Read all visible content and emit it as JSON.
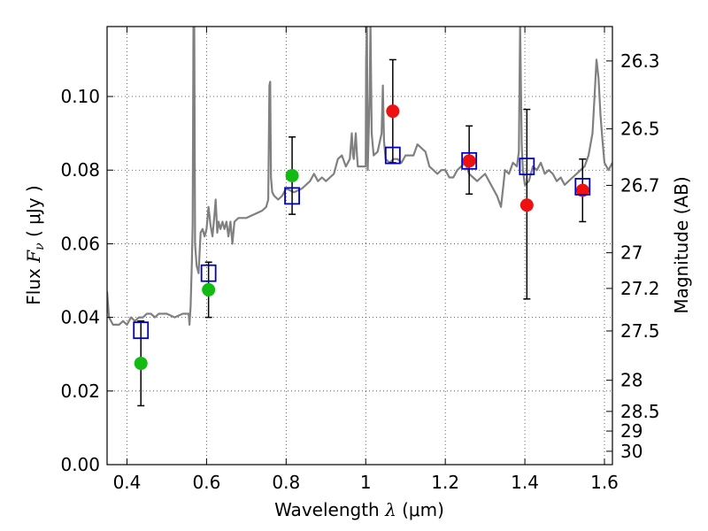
{
  "chart_data": {
    "type": "scatter",
    "title": "",
    "xlabel": {
      "prefix": "Wavelength  ",
      "symbol": "λ",
      "unit": " (μm)"
    },
    "ylabel": {
      "prefix": "Flux  ",
      "symbol": "F",
      "sub": "ν",
      "unit": "  ( μJy )"
    },
    "ylabel_right": "Magnitude (AB)",
    "xlim": [
      0.35,
      1.62
    ],
    "ylim": [
      0.0,
      0.119
    ],
    "grid": true,
    "x_ticks": [
      {
        "value": 0.4,
        "label": "0.4"
      },
      {
        "value": 0.6,
        "label": "0.6"
      },
      {
        "value": 0.8,
        "label": "0.8"
      },
      {
        "value": 1.0,
        "label": "1"
      },
      {
        "value": 1.2,
        "label": "1.2"
      },
      {
        "value": 1.4,
        "label": "1.4"
      },
      {
        "value": 1.6,
        "label": "1.6"
      }
    ],
    "y_ticks": [
      {
        "value": 0.0,
        "label": "0.00"
      },
      {
        "value": 0.02,
        "label": "0.02"
      },
      {
        "value": 0.04,
        "label": "0.04"
      },
      {
        "value": 0.06,
        "label": "0.06"
      },
      {
        "value": 0.08,
        "label": "0.08"
      },
      {
        "value": 0.1,
        "label": "0.10"
      }
    ],
    "right_ticks": [
      {
        "value": 26.3,
        "label": "26.3"
      },
      {
        "value": 26.5,
        "label": "26.5"
      },
      {
        "value": 26.7,
        "label": "26.7"
      },
      {
        "value": 27.0,
        "label": "27"
      },
      {
        "value": 27.2,
        "label": "27.2"
      },
      {
        "value": 27.5,
        "label": "27.5"
      },
      {
        "value": 28.0,
        "label": "28"
      },
      {
        "value": 28.5,
        "label": "28.5"
      },
      {
        "value": 29.0,
        "label": "29"
      },
      {
        "value": 30.0,
        "label": "30"
      }
    ],
    "series": [
      {
        "kind": "spectrum",
        "color": "#808080",
        "points": [
          [
            0.35,
            0.047
          ],
          [
            0.355,
            0.04
          ],
          [
            0.365,
            0.038
          ],
          [
            0.38,
            0.038
          ],
          [
            0.39,
            0.039
          ],
          [
            0.4,
            0.038
          ],
          [
            0.41,
            0.04
          ],
          [
            0.42,
            0.039
          ],
          [
            0.43,
            0.04
          ],
          [
            0.44,
            0.04
          ],
          [
            0.45,
            0.041
          ],
          [
            0.46,
            0.041
          ],
          [
            0.47,
            0.04
          ],
          [
            0.48,
            0.041
          ],
          [
            0.5,
            0.041
          ],
          [
            0.52,
            0.04
          ],
          [
            0.54,
            0.041
          ],
          [
            0.555,
            0.041
          ],
          [
            0.557,
            0.038
          ],
          [
            0.56,
            0.043
          ],
          [
            0.563,
            0.055
          ],
          [
            0.565,
            0.065
          ],
          [
            0.567,
            0.12
          ],
          [
            0.569,
            0.12
          ],
          [
            0.571,
            0.06
          ],
          [
            0.575,
            0.054
          ],
          [
            0.58,
            0.052
          ],
          [
            0.585,
            0.063
          ],
          [
            0.59,
            0.064
          ],
          [
            0.595,
            0.062
          ],
          [
            0.6,
            0.064
          ],
          [
            0.605,
            0.07
          ],
          [
            0.61,
            0.065
          ],
          [
            0.615,
            0.062
          ],
          [
            0.62,
            0.068
          ],
          [
            0.623,
            0.072
          ],
          [
            0.627,
            0.063
          ],
          [
            0.63,
            0.066
          ],
          [
            0.635,
            0.064
          ],
          [
            0.64,
            0.066
          ],
          [
            0.645,
            0.064
          ],
          [
            0.65,
            0.066
          ],
          [
            0.655,
            0.062
          ],
          [
            0.66,
            0.066
          ],
          [
            0.665,
            0.06
          ],
          [
            0.67,
            0.066
          ],
          [
            0.68,
            0.067
          ],
          [
            0.7,
            0.067
          ],
          [
            0.72,
            0.068
          ],
          [
            0.74,
            0.069
          ],
          [
            0.75,
            0.07
          ],
          [
            0.755,
            0.072
          ],
          [
            0.758,
            0.103
          ],
          [
            0.76,
            0.104
          ],
          [
            0.762,
            0.078
          ],
          [
            0.765,
            0.074
          ],
          [
            0.77,
            0.073
          ],
          [
            0.78,
            0.072
          ],
          [
            0.79,
            0.073
          ],
          [
            0.8,
            0.075
          ],
          [
            0.82,
            0.074
          ],
          [
            0.84,
            0.075
          ],
          [
            0.86,
            0.077
          ],
          [
            0.87,
            0.079
          ],
          [
            0.88,
            0.077
          ],
          [
            0.89,
            0.078
          ],
          [
            0.9,
            0.077
          ],
          [
            0.91,
            0.078
          ],
          [
            0.92,
            0.079
          ],
          [
            0.93,
            0.083
          ],
          [
            0.94,
            0.084
          ],
          [
            0.95,
            0.081
          ],
          [
            0.96,
            0.083
          ],
          [
            0.965,
            0.09
          ],
          [
            0.968,
            0.084
          ],
          [
            0.97,
            0.083
          ],
          [
            0.975,
            0.09
          ],
          [
            0.978,
            0.084
          ],
          [
            0.98,
            0.081
          ],
          [
            0.99,
            0.081
          ],
          [
            1.0,
            0.081
          ],
          [
            1.001,
            0.11
          ],
          [
            1.003,
            0.12
          ],
          [
            1.005,
            0.08
          ],
          [
            1.01,
            0.1
          ],
          [
            1.012,
            0.12
          ],
          [
            1.015,
            0.09
          ],
          [
            1.02,
            0.084
          ],
          [
            1.03,
            0.085
          ],
          [
            1.04,
            0.09
          ],
          [
            1.043,
            0.103
          ],
          [
            1.046,
            0.088
          ],
          [
            1.05,
            0.083
          ],
          [
            1.06,
            0.082
          ],
          [
            1.07,
            0.083
          ],
          [
            1.08,
            0.083
          ],
          [
            1.09,
            0.082
          ],
          [
            1.1,
            0.084
          ],
          [
            1.11,
            0.084
          ],
          [
            1.12,
            0.084
          ],
          [
            1.13,
            0.087
          ],
          [
            1.14,
            0.086
          ],
          [
            1.15,
            0.085
          ],
          [
            1.16,
            0.081
          ],
          [
            1.17,
            0.08
          ],
          [
            1.18,
            0.079
          ],
          [
            1.19,
            0.08
          ],
          [
            1.2,
            0.08
          ],
          [
            1.21,
            0.078
          ],
          [
            1.22,
            0.078
          ],
          [
            1.23,
            0.08
          ],
          [
            1.24,
            0.081
          ],
          [
            1.25,
            0.082
          ],
          [
            1.26,
            0.079
          ],
          [
            1.27,
            0.078
          ],
          [
            1.28,
            0.077
          ],
          [
            1.29,
            0.078
          ],
          [
            1.3,
            0.079
          ],
          [
            1.31,
            0.077
          ],
          [
            1.32,
            0.075
          ],
          [
            1.33,
            0.073
          ],
          [
            1.34,
            0.07
          ],
          [
            1.345,
            0.075
          ],
          [
            1.35,
            0.08
          ],
          [
            1.36,
            0.079
          ],
          [
            1.37,
            0.082
          ],
          [
            1.38,
            0.081
          ],
          [
            1.385,
            0.085
          ],
          [
            1.388,
            0.12
          ],
          [
            1.392,
            0.087
          ],
          [
            1.395,
            0.08
          ],
          [
            1.4,
            0.076
          ],
          [
            1.41,
            0.077
          ],
          [
            1.42,
            0.081
          ],
          [
            1.43,
            0.08
          ],
          [
            1.44,
            0.082
          ],
          [
            1.45,
            0.079
          ],
          [
            1.46,
            0.08
          ],
          [
            1.47,
            0.079
          ],
          [
            1.48,
            0.077
          ],
          [
            1.49,
            0.078
          ],
          [
            1.5,
            0.076
          ],
          [
            1.51,
            0.077
          ],
          [
            1.52,
            0.078
          ],
          [
            1.53,
            0.079
          ],
          [
            1.54,
            0.08
          ],
          [
            1.55,
            0.081
          ],
          [
            1.56,
            0.084
          ],
          [
            1.57,
            0.09
          ],
          [
            1.575,
            0.1
          ],
          [
            1.58,
            0.11
          ],
          [
            1.585,
            0.105
          ],
          [
            1.59,
            0.095
          ],
          [
            1.595,
            0.088
          ],
          [
            1.6,
            0.082
          ],
          [
            1.61,
            0.08
          ],
          [
            1.62,
            0.082
          ]
        ]
      },
      {
        "kind": "model-squares",
        "color": "#0000cc",
        "points": [
          [
            0.435,
            0.0365
          ],
          [
            0.605,
            0.052
          ],
          [
            0.815,
            0.073
          ],
          [
            1.068,
            0.084
          ],
          [
            1.26,
            0.0825
          ],
          [
            1.405,
            0.081
          ],
          [
            1.545,
            0.0755
          ]
        ]
      },
      {
        "kind": "green-points",
        "color": "#11bb11",
        "points": [
          [
            0.435,
            0.0275
          ],
          [
            0.605,
            0.0475
          ],
          [
            0.815,
            0.0785
          ]
        ]
      },
      {
        "kind": "red-points",
        "color": "#ee1111",
        "points": [
          [
            1.068,
            0.096
          ],
          [
            1.26,
            0.0825
          ],
          [
            1.405,
            0.0705
          ],
          [
            1.545,
            0.0745
          ]
        ]
      },
      {
        "kind": "error-bars",
        "color": "#000000",
        "bars": [
          {
            "x": 0.435,
            "low": 0.016,
            "high": 0.039
          },
          {
            "x": 0.605,
            "low": 0.04,
            "high": 0.055
          },
          {
            "x": 0.815,
            "low": 0.068,
            "high": 0.089
          },
          {
            "x": 1.068,
            "low": 0.082,
            "high": 0.11
          },
          {
            "x": 1.26,
            "low": 0.0735,
            "high": 0.092
          },
          {
            "x": 1.405,
            "low": 0.045,
            "high": 0.0965
          },
          {
            "x": 1.545,
            "low": 0.066,
            "high": 0.083
          }
        ]
      }
    ]
  }
}
